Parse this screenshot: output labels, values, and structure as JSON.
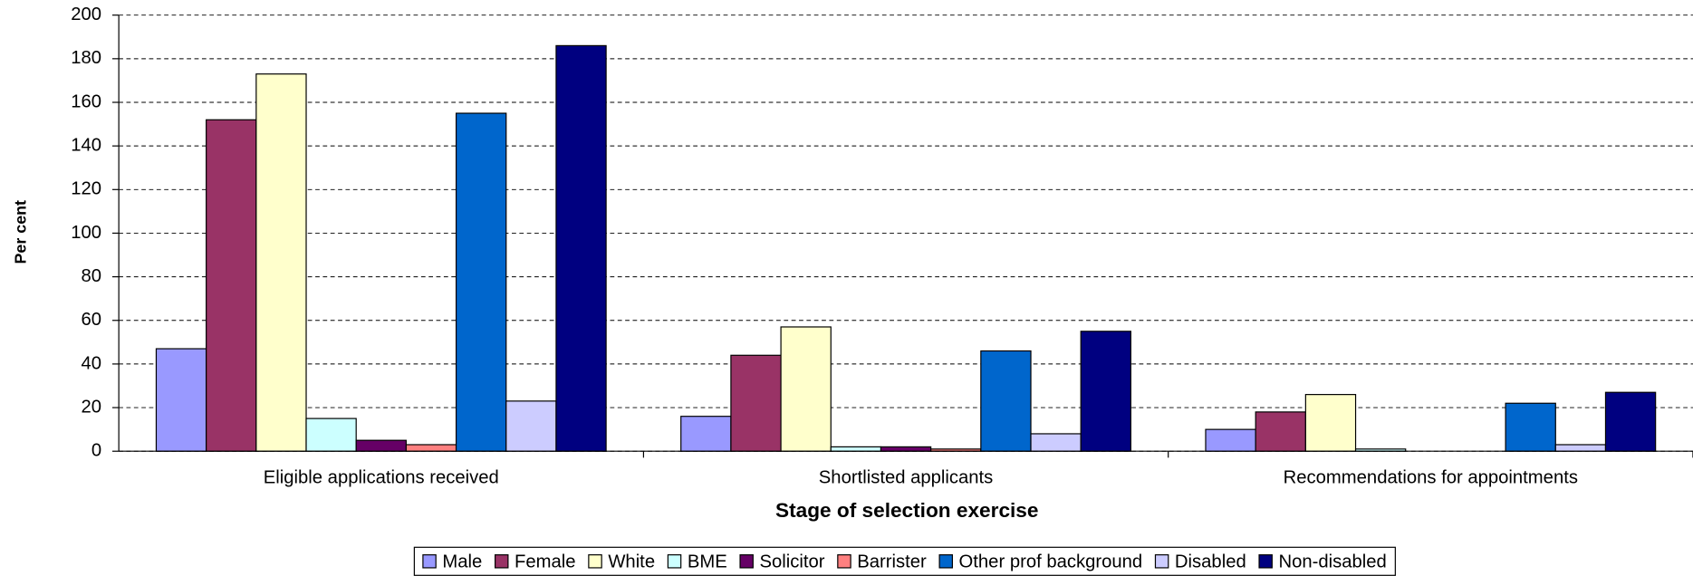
{
  "chart_data": {
    "type": "bar",
    "x_label": "Stage of selection exercise",
    "y_label": "Per cent",
    "categories": [
      "Eligible applications received",
      "Shortlisted applicants",
      "Recommendations for appointments"
    ],
    "series": [
      {
        "name": "Male",
        "color": "#9999ff",
        "values": [
          47,
          16,
          10
        ]
      },
      {
        "name": "Female",
        "color": "#993366",
        "values": [
          152,
          44,
          18
        ]
      },
      {
        "name": "White",
        "color": "#ffffcc",
        "values": [
          173,
          57,
          26
        ]
      },
      {
        "name": "BME",
        "color": "#ccffff",
        "values": [
          15,
          2,
          1
        ]
      },
      {
        "name": "Solicitor",
        "color": "#660066",
        "values": [
          5,
          2,
          0
        ]
      },
      {
        "name": "Barrister",
        "color": "#ff8080",
        "values": [
          3,
          1,
          0
        ]
      },
      {
        "name": "Other prof background",
        "color": "#0066cc",
        "values": [
          155,
          46,
          22
        ]
      },
      {
        "name": "Disabled",
        "color": "#ccccff",
        "values": [
          23,
          8,
          3
        ]
      },
      {
        "name": "Non-disabled",
        "color": "#000080",
        "values": [
          186,
          55,
          27
        ]
      }
    ],
    "ylim": [
      0,
      200
    ],
    "yticks": [
      0,
      20,
      40,
      60,
      80,
      100,
      120,
      140,
      160,
      180,
      200
    ],
    "grid": true,
    "legend": "bottom"
  }
}
